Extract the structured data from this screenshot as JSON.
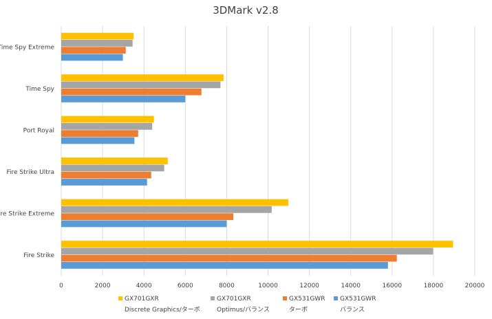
{
  "chart_data": {
    "type": "bar",
    "orientation": "horizontal",
    "title": "3DMark v2.8",
    "xlabel": "",
    "ylabel": "",
    "xlim": [
      0,
      20000
    ],
    "xticks": [
      0,
      2000,
      4000,
      6000,
      8000,
      10000,
      12000,
      14000,
      16000,
      18000,
      20000
    ],
    "grid": true,
    "legend_position": "bottom",
    "categories": [
      "Time Spy Extreme",
      "Time Spy",
      "Port Royal",
      "Fire Strike Ultra",
      "Fire Strike Extreme",
      "Fire Strike"
    ],
    "series": [
      {
        "name": "GX701GXR",
        "subname": "Discrete Graphics/ターボ",
        "color": "#FFC000",
        "values": [
          3500,
          7850,
          4480,
          5150,
          10980,
          18950
        ]
      },
      {
        "name": "GX701GXR",
        "subname": "Optimus/バランス",
        "color": "#A5A5A5",
        "values": [
          3450,
          7700,
          4400,
          4980,
          10180,
          17980
        ]
      },
      {
        "name": "GX531GWR",
        "subname": "ターボ",
        "color": "#ED7D31",
        "values": [
          3120,
          6780,
          3720,
          4350,
          8320,
          16230
        ]
      },
      {
        "name": "GX531GWR",
        "subname": "バランス",
        "color": "#5B9BD5",
        "values": [
          2980,
          6000,
          3540,
          4150,
          8000,
          15800
        ]
      }
    ]
  }
}
